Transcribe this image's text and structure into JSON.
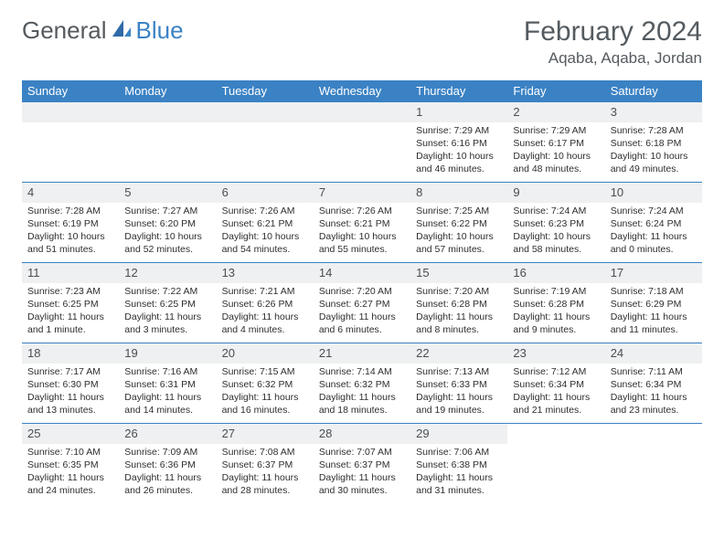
{
  "logo": {
    "part1": "General",
    "part2": "Blue"
  },
  "title": "February 2024",
  "location": "Aqaba, Aqaba, Jordan",
  "colors": {
    "header_bg": "#3b82c4",
    "header_text": "#ffffff",
    "daynum_bg": "#eef0f1",
    "border": "#3b82c4",
    "title_color": "#545b60"
  },
  "dayNames": [
    "Sunday",
    "Monday",
    "Tuesday",
    "Wednesday",
    "Thursday",
    "Friday",
    "Saturday"
  ],
  "startOffset": 4,
  "days": [
    {
      "n": 1,
      "sr": "7:29 AM",
      "ss": "6:16 PM",
      "dl": "10 hours and 46 minutes."
    },
    {
      "n": 2,
      "sr": "7:29 AM",
      "ss": "6:17 PM",
      "dl": "10 hours and 48 minutes."
    },
    {
      "n": 3,
      "sr": "7:28 AM",
      "ss": "6:18 PM",
      "dl": "10 hours and 49 minutes."
    },
    {
      "n": 4,
      "sr": "7:28 AM",
      "ss": "6:19 PM",
      "dl": "10 hours and 51 minutes."
    },
    {
      "n": 5,
      "sr": "7:27 AM",
      "ss": "6:20 PM",
      "dl": "10 hours and 52 minutes."
    },
    {
      "n": 6,
      "sr": "7:26 AM",
      "ss": "6:21 PM",
      "dl": "10 hours and 54 minutes."
    },
    {
      "n": 7,
      "sr": "7:26 AM",
      "ss": "6:21 PM",
      "dl": "10 hours and 55 minutes."
    },
    {
      "n": 8,
      "sr": "7:25 AM",
      "ss": "6:22 PM",
      "dl": "10 hours and 57 minutes."
    },
    {
      "n": 9,
      "sr": "7:24 AM",
      "ss": "6:23 PM",
      "dl": "10 hours and 58 minutes."
    },
    {
      "n": 10,
      "sr": "7:24 AM",
      "ss": "6:24 PM",
      "dl": "11 hours and 0 minutes."
    },
    {
      "n": 11,
      "sr": "7:23 AM",
      "ss": "6:25 PM",
      "dl": "11 hours and 1 minute."
    },
    {
      "n": 12,
      "sr": "7:22 AM",
      "ss": "6:25 PM",
      "dl": "11 hours and 3 minutes."
    },
    {
      "n": 13,
      "sr": "7:21 AM",
      "ss": "6:26 PM",
      "dl": "11 hours and 4 minutes."
    },
    {
      "n": 14,
      "sr": "7:20 AM",
      "ss": "6:27 PM",
      "dl": "11 hours and 6 minutes."
    },
    {
      "n": 15,
      "sr": "7:20 AM",
      "ss": "6:28 PM",
      "dl": "11 hours and 8 minutes."
    },
    {
      "n": 16,
      "sr": "7:19 AM",
      "ss": "6:28 PM",
      "dl": "11 hours and 9 minutes."
    },
    {
      "n": 17,
      "sr": "7:18 AM",
      "ss": "6:29 PM",
      "dl": "11 hours and 11 minutes."
    },
    {
      "n": 18,
      "sr": "7:17 AM",
      "ss": "6:30 PM",
      "dl": "11 hours and 13 minutes."
    },
    {
      "n": 19,
      "sr": "7:16 AM",
      "ss": "6:31 PM",
      "dl": "11 hours and 14 minutes."
    },
    {
      "n": 20,
      "sr": "7:15 AM",
      "ss": "6:32 PM",
      "dl": "11 hours and 16 minutes."
    },
    {
      "n": 21,
      "sr": "7:14 AM",
      "ss": "6:32 PM",
      "dl": "11 hours and 18 minutes."
    },
    {
      "n": 22,
      "sr": "7:13 AM",
      "ss": "6:33 PM",
      "dl": "11 hours and 19 minutes."
    },
    {
      "n": 23,
      "sr": "7:12 AM",
      "ss": "6:34 PM",
      "dl": "11 hours and 21 minutes."
    },
    {
      "n": 24,
      "sr": "7:11 AM",
      "ss": "6:34 PM",
      "dl": "11 hours and 23 minutes."
    },
    {
      "n": 25,
      "sr": "7:10 AM",
      "ss": "6:35 PM",
      "dl": "11 hours and 24 minutes."
    },
    {
      "n": 26,
      "sr": "7:09 AM",
      "ss": "6:36 PM",
      "dl": "11 hours and 26 minutes."
    },
    {
      "n": 27,
      "sr": "7:08 AM",
      "ss": "6:37 PM",
      "dl": "11 hours and 28 minutes."
    },
    {
      "n": 28,
      "sr": "7:07 AM",
      "ss": "6:37 PM",
      "dl": "11 hours and 30 minutes."
    },
    {
      "n": 29,
      "sr": "7:06 AM",
      "ss": "6:38 PM",
      "dl": "11 hours and 31 minutes."
    }
  ],
  "labels": {
    "sunrise": "Sunrise:",
    "sunset": "Sunset:",
    "daylight": "Daylight:"
  }
}
